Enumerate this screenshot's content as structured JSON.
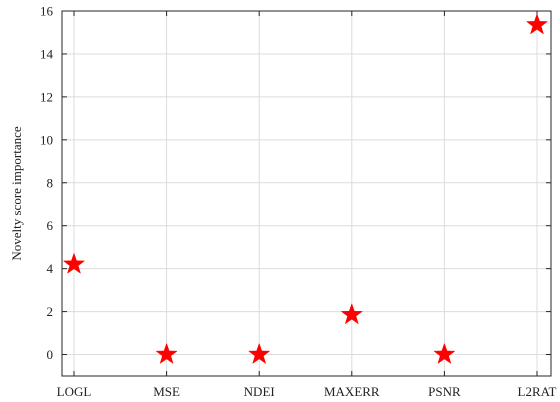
{
  "chart_data": {
    "type": "scatter",
    "title": "",
    "xlabel": "",
    "ylabel": "Novelty score importance",
    "categories": [
      "LOGL",
      "MSE",
      "NDEI",
      "MAXERR",
      "PSNR",
      "L2RAT"
    ],
    "values": [
      4.2,
      0.0,
      0.0,
      1.85,
      0.0,
      15.35
    ],
    "ylim": [
      -1,
      16
    ],
    "yticks": [
      0,
      2,
      4,
      6,
      8,
      10,
      12,
      14,
      16
    ],
    "grid": true,
    "marker": "pentagram",
    "marker_color": "#ff0000"
  }
}
